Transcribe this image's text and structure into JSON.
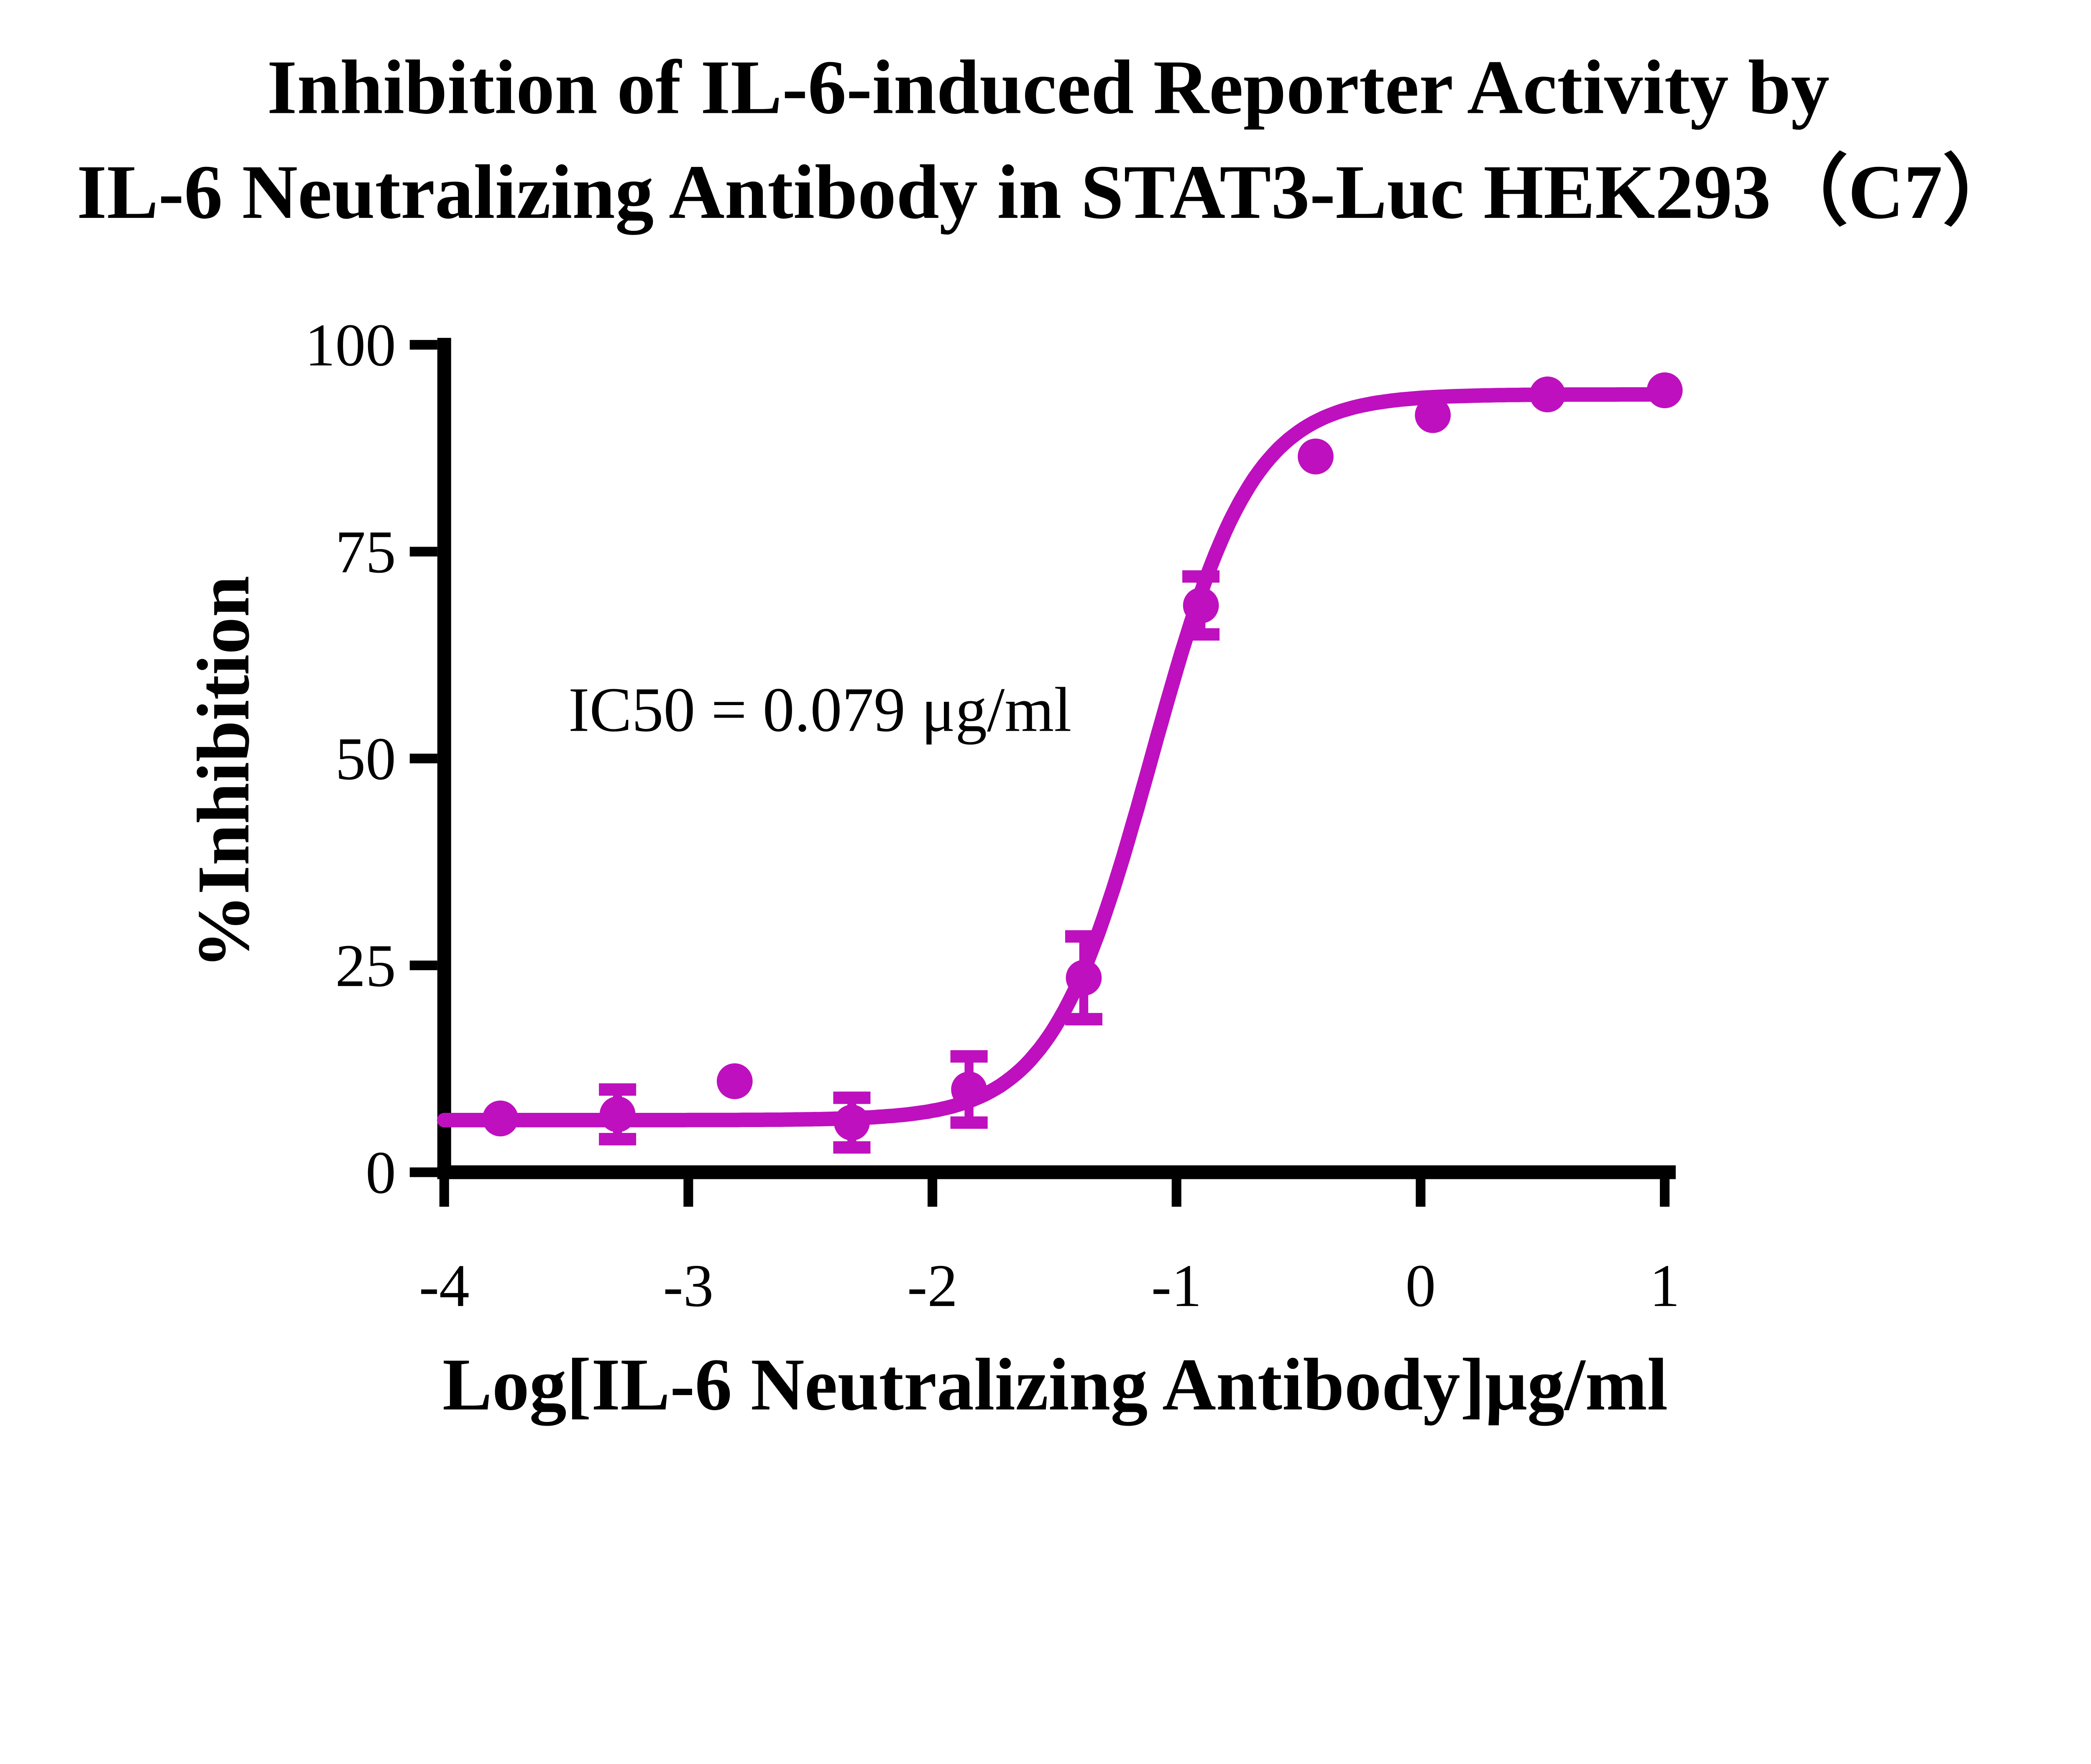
{
  "chart_data": {
    "type": "scatter",
    "title_lines": [
      "Inhibition of IL-6-induced Reporter Activity by",
      "IL-6 Neutralizing Antibody in STAT3-Luc HEK293（C7）"
    ],
    "xlabel": "Log[IL-6 Neutralizing Antibody]μg/ml",
    "ylabel": "%Inhibition",
    "annotation": "IC50 = 0.079 μg/ml",
    "ic50_value": "0.079",
    "ic50_units": "μg/ml",
    "xlim": [
      -4,
      1
    ],
    "ylim": [
      0,
      100
    ],
    "xticks": [
      -4,
      -3,
      -2,
      -1,
      0,
      1
    ],
    "yticks": [
      0,
      25,
      50,
      75,
      100
    ],
    "grid": false,
    "legend": "none",
    "series_name": "IL-6 Neutralizing Antibody",
    "series_color": "#BE10BE",
    "axis_color": "#000000",
    "points": [
      {
        "x": -3.77,
        "y": 6.5,
        "err": null
      },
      {
        "x": -3.29,
        "y": 7.0,
        "err": 3.0
      },
      {
        "x": -2.81,
        "y": 11.0,
        "err": null
      },
      {
        "x": -2.33,
        "y": 6.0,
        "err": 3.0
      },
      {
        "x": -1.85,
        "y": 10.0,
        "err": 4.0
      },
      {
        "x": -1.38,
        "y": 23.5,
        "err": 5.0
      },
      {
        "x": -0.9,
        "y": 68.5,
        "err": 3.5
      },
      {
        "x": -0.43,
        "y": 86.5,
        "err": null
      },
      {
        "x": 0.05,
        "y": 91.5,
        "err": null
      },
      {
        "x": 0.52,
        "y": 94.0,
        "err": null
      },
      {
        "x": 1.0,
        "y": 94.5,
        "err": null
      }
    ],
    "fit": {
      "bottom": 6.3,
      "top": 94.0,
      "logIC50": -1.102,
      "hillslope": 2.1
    }
  }
}
